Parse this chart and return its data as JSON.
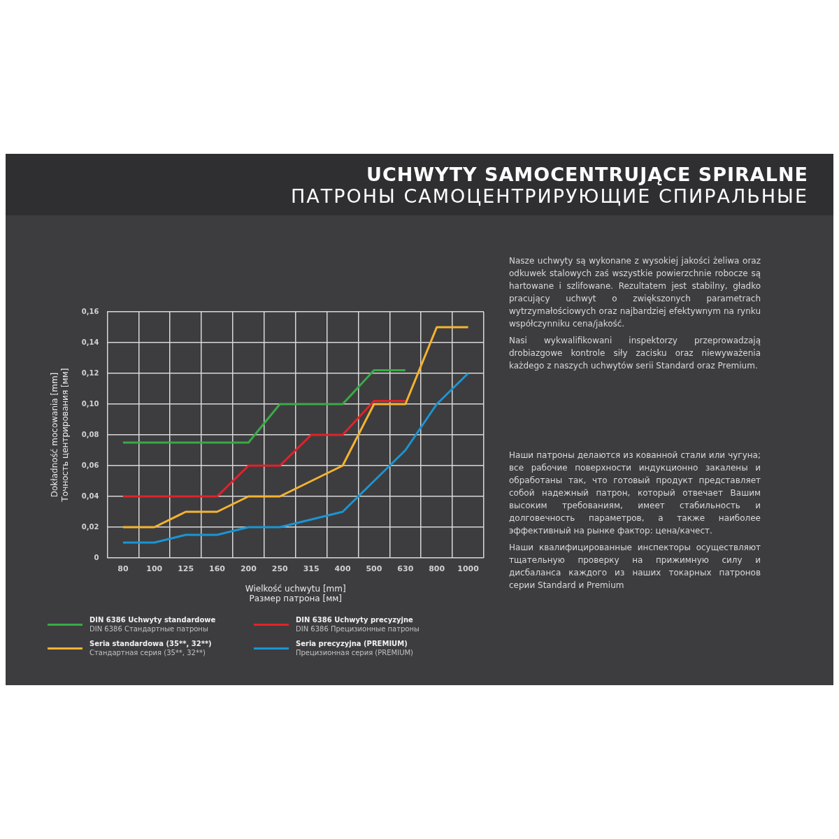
{
  "chart_data": {
    "type": "line",
    "title": "UCHWYTY SAMOCENTRUJĄCE SPIRALNE",
    "subtitle": "ПАТРОНЫ САМОЦЕНТРИРУЮЩИЕ СПИРАЛЬНЫЕ",
    "xlabel": "Wielkość uchwytu [mm]\nРазмер патрона [мм]",
    "ylabel": "Dokładność mocowania [mm]\nТочность центрирования [мм]",
    "categories": [
      "80",
      "100",
      "125",
      "160",
      "200",
      "250",
      "315",
      "400",
      "500",
      "630",
      "800",
      "1000"
    ],
    "series": [
      {
        "name": "DIN 6386 Uchwyty standardowe\nDIN 6386 Стандартные патроны",
        "color": "#3aaa46",
        "values": [
          0.075,
          0.075,
          0.075,
          0.075,
          0.075,
          0.1,
          0.1,
          0.1,
          0.122,
          0.122,
          null,
          null
        ]
      },
      {
        "name": "DIN 6386 Uchwyty precyzyjne\nDIN 6386 Прецизионные патроны",
        "color": "#e02329",
        "values": [
          0.04,
          0.04,
          0.04,
          0.04,
          0.06,
          0.06,
          0.08,
          0.08,
          0.102,
          0.102,
          null,
          null
        ]
      },
      {
        "name": "Seria standardowa (35**, 32**)\nСтандартная серия (35**, 32**)",
        "color": "#f5b331",
        "values": [
          0.02,
          0.02,
          0.03,
          0.03,
          0.04,
          0.04,
          0.05,
          0.06,
          0.1,
          0.1,
          0.15,
          0.15
        ]
      },
      {
        "name": "Seria precyzyjna (PREMIUM)\nПрецизионная серия (PREMIUM)",
        "color": "#1a95d3",
        "values": [
          0.01,
          0.01,
          0.015,
          0.015,
          0.02,
          0.02,
          0.025,
          0.03,
          0.05,
          0.07,
          0.1,
          0.12
        ]
      }
    ],
    "ylim": [
      0,
      0.16
    ],
    "yticks": [
      0,
      {
        "value": 0.02,
        "label": "0,02"
      },
      {
        "value": 0.04,
        "label": "0,04"
      },
      {
        "value": 0.06,
        "label": "0,06"
      },
      {
        "value": 0.08,
        "label": "0,08"
      },
      {
        "value": 0.1,
        "label": "0,10"
      },
      {
        "value": 0.12,
        "label": "0,12"
      },
      {
        "value": 0.14,
        "label": "0,14"
      },
      {
        "value": 0.16,
        "label": "0,16"
      }
    ],
    "grid": true,
    "legend": "bottom",
    "marker": "none",
    "line_style": "solid",
    "annotations": [
      "Nasze uchwyty są wykonane z wysokiej jakości żeliwa oraz odkuwek stalowych zaś wszystkie powierzchnie robocze są hartowane i szlifowane. Rezultatem jest stabilny, gładko pracujący uchwyt o zwiększonych parametrach wytrzymałościowych oraz najbardziej efektywnym na rynku współczynniku cena/jakość.",
      "Nasi wykwalifikowani inspektorzy przeprowadzają drobiazgowe kontrole siły zacisku oraz niewyważenia każdego z naszych uchwytów serii Standard oraz Premium.",
      "Наши патроны делаются из кованной стали или чугуна; все рабочие поверхности индукционно закалены и обработаны так, что готовый продукт представляет собой надежный патрон, который отвечает Вашим высоким требованиям, имеет стабильность и долговечность параметров, а также наиболее эффективный на рынке фактор: цена/качест.",
      "Наши квалифицированные инспекторы осуществляют тщательную проверку на прижимную силу и дисбаланса каждого из наших токарных патронов серии Standard и Premium"
    ]
  }
}
